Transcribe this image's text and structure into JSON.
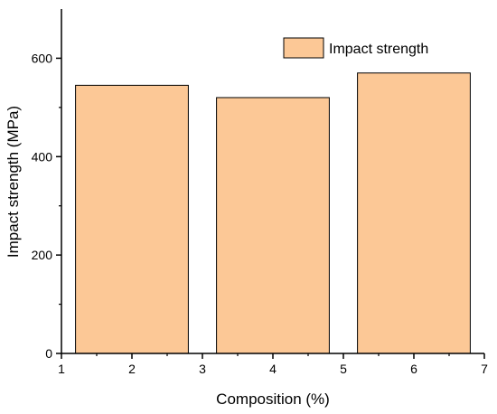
{
  "chart_data": {
    "type": "bar",
    "title": "",
    "xlabel": "Composition (%)",
    "ylabel": "Impact strength (MPa)",
    "x": [
      2,
      4,
      6
    ],
    "bar_width": 1.6,
    "series": [
      {
        "name": "Impact strength",
        "values": [
          545,
          520,
          570
        ],
        "color": "#fcc896",
        "edge_color": "#000000"
      }
    ],
    "xlim": [
      1,
      7
    ],
    "ylim": [
      0,
      700
    ],
    "xticks": [
      1,
      2,
      3,
      4,
      5,
      6,
      7
    ],
    "yticks": [
      0,
      200,
      400,
      600
    ],
    "xtick_labels": [
      "1",
      "2",
      "3",
      "4",
      "5",
      "6",
      "7"
    ],
    "ytick_labels": [
      "0",
      "200",
      "400",
      "600"
    ],
    "grid": false,
    "legend_position": "top-right"
  }
}
